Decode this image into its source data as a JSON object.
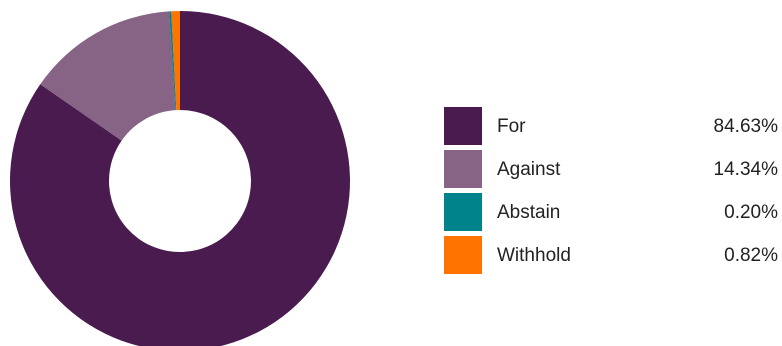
{
  "chart_data": {
    "type": "pie",
    "title": "",
    "donut": true,
    "slices": [
      {
        "name": "For",
        "value": 84.63,
        "label": "84.63%",
        "color": "#4a1b4e"
      },
      {
        "name": "Against",
        "value": 14.34,
        "label": "14.34%",
        "color": "#876485"
      },
      {
        "name": "Abstain",
        "value": 0.2,
        "label": "0.20%",
        "color": "#00838a"
      },
      {
        "name": "Withhold",
        "value": 0.82,
        "label": "0.82%",
        "color": "#ff7400"
      }
    ],
    "legend_position": "right"
  }
}
